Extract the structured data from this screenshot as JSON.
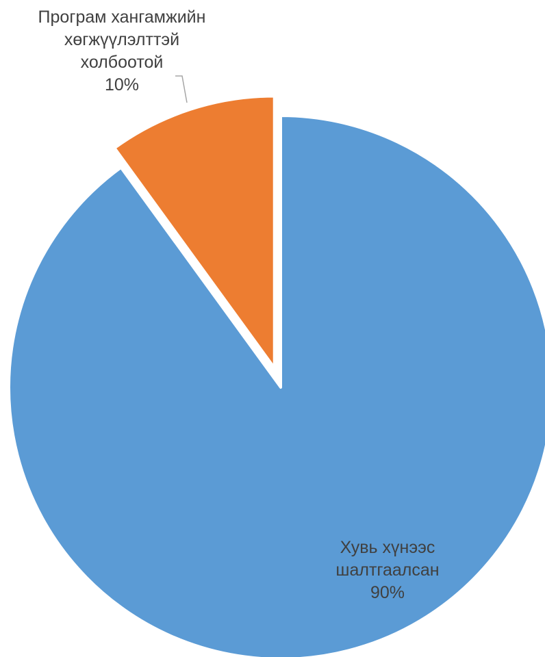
{
  "chart_data": {
    "type": "pie",
    "categories": [
      "Хувь хүнээс шалтгаалсан",
      "Програм хангамжийн хөгжүүлэлттэй холбоотой"
    ],
    "values": [
      90,
      10
    ],
    "colors": [
      "#5B9BD5",
      "#ED7D31"
    ],
    "exploded": [
      false,
      true
    ],
    "data_labels": [
      {
        "lines": [
          "Хувь хүнээс",
          "шалтгаалсан",
          "90%"
        ]
      },
      {
        "lines": [
          "Програм хангамжийн",
          "хөгжүүлэлттэй",
          "холбоотой",
          "10%"
        ]
      }
    ],
    "leader_line_color": "#A6A6A6",
    "title": "",
    "legend": "none"
  }
}
